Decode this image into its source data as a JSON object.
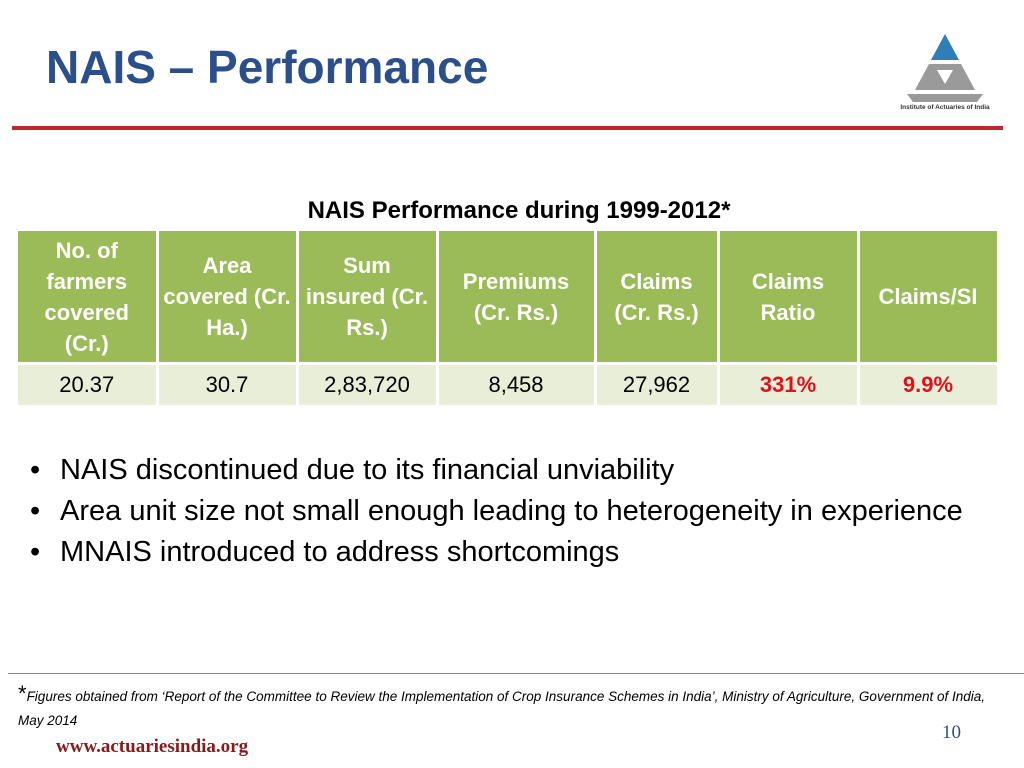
{
  "header": {
    "title": "NAIS – Performance",
    "logo_text": "Institute of Actuaries of India"
  },
  "table": {
    "caption": "NAIS Performance during 1999-2012*",
    "columns": [
      "No. of farmers covered (Cr.)",
      "Area covered (Cr. Ha.)",
      "Sum insured (Cr. Rs.)",
      "Premiums (Cr. Rs.)",
      "Claims (Cr. Rs.)",
      "Claims Ratio",
      "Claims/SI"
    ],
    "rows": [
      [
        "20.37",
        "30.7",
        "2,83,720",
        "8,458",
        "27,962",
        "331%",
        "9.9%"
      ]
    ]
  },
  "bullets": [
    "NAIS discontinued due to its financial unviability",
    "Area unit size not small enough leading to heterogeneity in experience",
    "MNAIS introduced to address shortcomings"
  ],
  "footnote": {
    "marker": "*",
    "text": "Figures obtained from ‘Report of the Committee to Review the Implementation of Crop Insurance Schemes in India’, Ministry of Agriculture, Government of India, May 2014"
  },
  "footer": {
    "url": "www.actuariesindia.org",
    "page": "10"
  }
}
